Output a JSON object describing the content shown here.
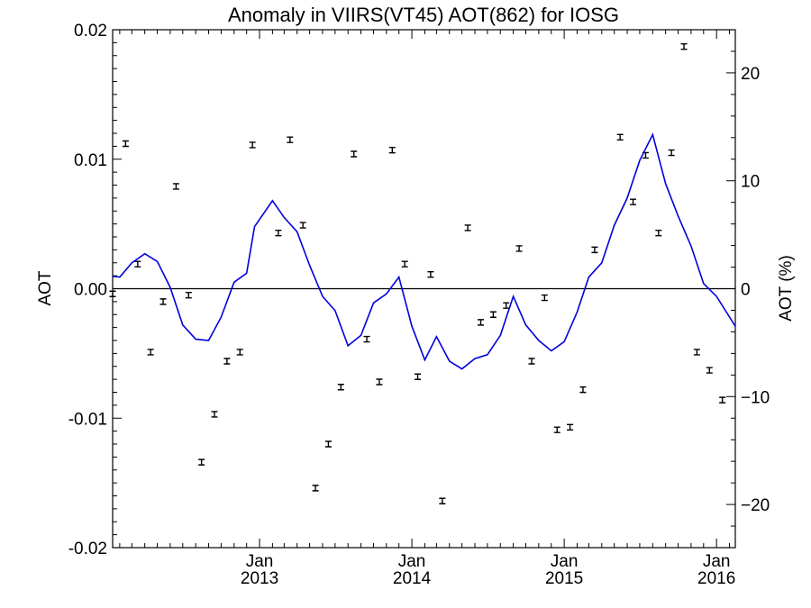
{
  "chart_data": {
    "type": "line",
    "title": "Anomaly in VIIRS(VT45) AOT(862) for IOSG",
    "ylabel": "AOT",
    "y2label": "AOT (%)",
    "xlabel": "",
    "xlim": [
      "2012-01-15",
      "2016-02-15"
    ],
    "ylim": [
      -0.02,
      0.02
    ],
    "y2lim": [
      -24,
      24
    ],
    "x_ticks": [
      {
        "month": "Jan",
        "year": "2013",
        "date": "2013-01-01"
      },
      {
        "month": "Jan",
        "year": "2014",
        "date": "2014-01-01"
      },
      {
        "month": "Jan",
        "year": "2015",
        "date": "2015-01-01"
      },
      {
        "month": "Jan",
        "year": "2016",
        "date": "2016-01-01"
      }
    ],
    "y_ticks": [
      "0.02",
      "0.01",
      "0.00",
      "-0.01",
      "-0.02"
    ],
    "y2_ticks": [
      "20",
      "10",
      "0",
      "−10",
      "−20"
    ],
    "zero_line": true,
    "series": [
      {
        "kind": "errorbar",
        "color": "#000000",
        "points": [
          {
            "x": "2012-01-15",
            "y": -0.0004
          },
          {
            "x": "2012-02-15",
            "y": 0.0112
          },
          {
            "x": "2012-03-15",
            "y": 0.0019
          },
          {
            "x": "2012-04-15",
            "y": -0.0049
          },
          {
            "x": "2012-05-15",
            "y": -0.001
          },
          {
            "x": "2012-06-15",
            "y": 0.0079
          },
          {
            "x": "2012-07-15",
            "y": -0.0005
          },
          {
            "x": "2012-08-15",
            "y": -0.0134
          },
          {
            "x": "2012-09-15",
            "y": -0.0097
          },
          {
            "x": "2012-10-15",
            "y": -0.0056
          },
          {
            "x": "2012-11-15",
            "y": -0.0049
          },
          {
            "x": "2012-12-15",
            "y": 0.0111
          },
          {
            "x": "2013-01-15",
            "y": null
          },
          {
            "x": "2013-02-15",
            "y": 0.0043
          },
          {
            "x": "2013-03-15",
            "y": 0.0115
          },
          {
            "x": "2013-04-15",
            "y": 0.0049
          },
          {
            "x": "2013-05-15",
            "y": -0.0154
          },
          {
            "x": "2013-06-15",
            "y": -0.012
          },
          {
            "x": "2013-07-15",
            "y": -0.0076
          },
          {
            "x": "2013-08-15",
            "y": 0.0104
          },
          {
            "x": "2013-09-15",
            "y": -0.0039
          },
          {
            "x": "2013-10-15",
            "y": -0.0072
          },
          {
            "x": "2013-11-15",
            "y": 0.0107
          },
          {
            "x": "2013-12-15",
            "y": 0.0019
          },
          {
            "x": "2014-01-15",
            "y": -0.0068
          },
          {
            "x": "2014-02-15",
            "y": 0.0011
          },
          {
            "x": "2014-03-15",
            "y": -0.0164
          },
          {
            "x": "2014-04-15",
            "y": null
          },
          {
            "x": "2014-05-15",
            "y": 0.0047
          },
          {
            "x": "2014-06-15",
            "y": -0.0026
          },
          {
            "x": "2014-07-15",
            "y": -0.002
          },
          {
            "x": "2014-08-15",
            "y": -0.0013
          },
          {
            "x": "2014-09-15",
            "y": 0.0031
          },
          {
            "x": "2014-10-15",
            "y": -0.0056
          },
          {
            "x": "2014-11-15",
            "y": -0.0007
          },
          {
            "x": "2014-12-15",
            "y": -0.0109
          },
          {
            "x": "2015-01-15",
            "y": -0.0107
          },
          {
            "x": "2015-02-15",
            "y": -0.0078
          },
          {
            "x": "2015-03-15",
            "y": 0.003
          },
          {
            "x": "2015-04-15",
            "y": null
          },
          {
            "x": "2015-05-15",
            "y": 0.0117
          },
          {
            "x": "2015-06-15",
            "y": 0.0067
          },
          {
            "x": "2015-07-15",
            "y": 0.0103
          },
          {
            "x": "2015-08-15",
            "y": 0.0043
          },
          {
            "x": "2015-09-15",
            "y": 0.0105
          },
          {
            "x": "2015-10-15",
            "y": 0.0187
          },
          {
            "x": "2015-11-15",
            "y": -0.0049
          },
          {
            "x": "2015-12-15",
            "y": -0.0063
          },
          {
            "x": "2016-01-15",
            "y": -0.0086
          }
        ]
      },
      {
        "kind": "line",
        "color": "#0000dd",
        "points": [
          {
            "x": "2012-01-01",
            "y": 0.001
          },
          {
            "x": "2012-02-01",
            "y": 0.0009
          },
          {
            "x": "2012-03-01",
            "y": 0.002
          },
          {
            "x": "2012-04-01",
            "y": 0.0027
          },
          {
            "x": "2012-05-01",
            "y": 0.0021
          },
          {
            "x": "2012-06-01",
            "y": 0.0001
          },
          {
            "x": "2012-07-01",
            "y": -0.0028
          },
          {
            "x": "2012-08-01",
            "y": -0.0039
          },
          {
            "x": "2012-09-01",
            "y": -0.004
          },
          {
            "x": "2012-10-01",
            "y": -0.0022
          },
          {
            "x": "2012-11-01",
            "y": 0.0005
          },
          {
            "x": "2012-12-01",
            "y": 0.0012
          },
          {
            "x": "2012-12-20",
            "y": 0.0048
          },
          {
            "x": "2013-02-01",
            "y": 0.0068
          },
          {
            "x": "2013-03-01",
            "y": 0.0055
          },
          {
            "x": "2013-04-01",
            "y": 0.0044
          },
          {
            "x": "2013-05-01",
            "y": 0.0018
          },
          {
            "x": "2013-06-01",
            "y": -0.0006
          },
          {
            "x": "2013-07-01",
            "y": -0.0017
          },
          {
            "x": "2013-08-01",
            "y": -0.0044
          },
          {
            "x": "2013-09-01",
            "y": -0.0036
          },
          {
            "x": "2013-10-01",
            "y": -0.0011
          },
          {
            "x": "2013-11-01",
            "y": -0.0004
          },
          {
            "x": "2013-12-01",
            "y": 0.0009
          },
          {
            "x": "2014-01-01",
            "y": -0.0029
          },
          {
            "x": "2014-02-01",
            "y": -0.0055
          },
          {
            "x": "2014-03-01",
            "y": -0.0037
          },
          {
            "x": "2014-04-01",
            "y": -0.0056
          },
          {
            "x": "2014-05-01",
            "y": -0.0062
          },
          {
            "x": "2014-06-01",
            "y": -0.0054
          },
          {
            "x": "2014-07-01",
            "y": -0.0051
          },
          {
            "x": "2014-08-01",
            "y": -0.0036
          },
          {
            "x": "2014-09-01",
            "y": -0.0006
          },
          {
            "x": "2014-10-01",
            "y": -0.0028
          },
          {
            "x": "2014-11-01",
            "y": -0.004
          },
          {
            "x": "2014-12-01",
            "y": -0.0048
          },
          {
            "x": "2015-01-01",
            "y": -0.0041
          },
          {
            "x": "2015-02-01",
            "y": -0.0018
          },
          {
            "x": "2015-03-01",
            "y": 0.0009
          },
          {
            "x": "2015-04-01",
            "y": 0.002
          },
          {
            "x": "2015-05-01",
            "y": 0.0049
          },
          {
            "x": "2015-06-01",
            "y": 0.007
          },
          {
            "x": "2015-07-01",
            "y": 0.0099
          },
          {
            "x": "2015-08-01",
            "y": 0.0119
          },
          {
            "x": "2015-09-01",
            "y": 0.0081
          },
          {
            "x": "2015-10-01",
            "y": 0.0056
          },
          {
            "x": "2015-11-01",
            "y": 0.0033
          },
          {
            "x": "2015-12-01",
            "y": 0.0004
          },
          {
            "x": "2016-01-01",
            "y": -0.0006
          },
          {
            "x": "2016-02-15",
            "y": -0.0029
          }
        ]
      }
    ]
  }
}
